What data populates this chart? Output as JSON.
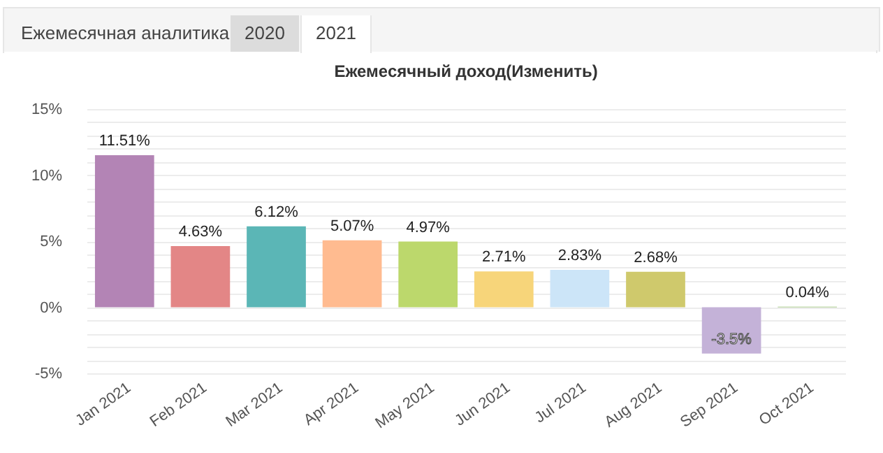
{
  "chart_data": {
    "type": "bar",
    "title": "Ежемесячный доход(Изменить)",
    "annotations": [
      "Ежемесячная аналитика",
      "2020",
      "2021"
    ],
    "categories": [
      "Jan 2021",
      "Feb 2021",
      "Mar 2021",
      "Apr 2021",
      "May 2021",
      "Jun 2021",
      "Jul 2021",
      "Aug 2021",
      "Sep 2021",
      "Oct 2021"
    ],
    "values": [
      11.51,
      4.63,
      6.12,
      5.07,
      4.97,
      2.71,
      2.83,
      2.68,
      -3.5,
      0.04
    ],
    "value_labels": [
      "11.51%",
      "4.63%",
      "6.12%",
      "5.07%",
      "4.97%",
      "2.71%",
      "2.83%",
      "2.68%",
      "-3.5%",
      "0.04%"
    ],
    "colors": [
      "#b384b5",
      "#e38686",
      "#5bb6b6",
      "#ffbb90",
      "#bcd86c",
      "#f7d57a",
      "#cce5f8",
      "#cfc96c",
      "#c4b2d8",
      "#8fbc6a"
    ],
    "ylim": [
      -5,
      15
    ],
    "yticks": [
      {
        "value": -5,
        "label": "-5%"
      },
      {
        "value": -4,
        "label": null
      },
      {
        "value": -3,
        "label": null
      },
      {
        "value": -2,
        "label": null
      },
      {
        "value": -1,
        "label": null
      },
      {
        "value": 0,
        "label": "0%"
      },
      {
        "value": 1,
        "label": null
      },
      {
        "value": 2,
        "label": null
      },
      {
        "value": 3,
        "label": null
      },
      {
        "value": 4,
        "label": null
      },
      {
        "value": 5,
        "label": "5%"
      },
      {
        "value": 6,
        "label": null
      },
      {
        "value": 7,
        "label": null
      },
      {
        "value": 8,
        "label": null
      },
      {
        "value": 9,
        "label": null
      },
      {
        "value": 10,
        "label": "10%"
      },
      {
        "value": 11,
        "label": null
      },
      {
        "value": 12,
        "label": null
      },
      {
        "value": 13,
        "label": null
      },
      {
        "value": 14,
        "label": null
      },
      {
        "value": 15,
        "label": "15%"
      }
    ],
    "grid": "y",
    "legend": false
  }
}
